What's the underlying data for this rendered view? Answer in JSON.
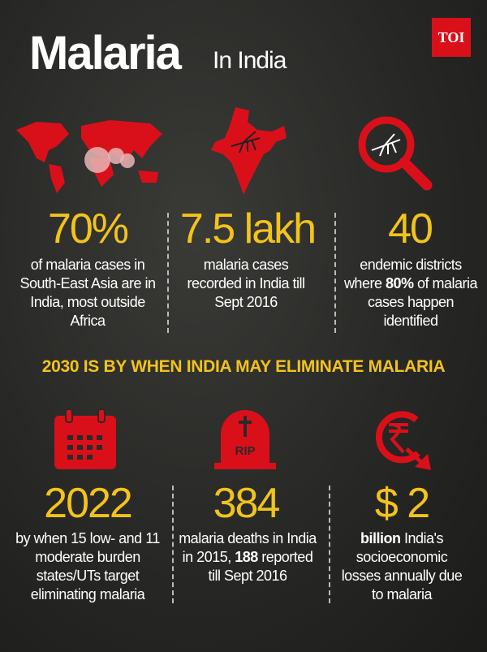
{
  "header": {
    "title": "Malaria",
    "subtitle": "In India",
    "logo": "TOI"
  },
  "stats_top": [
    {
      "value": "70%",
      "parts": [
        "of malaria cases in South-East Asia are in India, most outside Africa"
      ]
    },
    {
      "value": "7.5 lakh",
      "parts": [
        "malaria cases recorded in India till Sept 2016"
      ]
    },
    {
      "value": "40",
      "parts": [
        "endemic districts where ",
        "80%",
        " of malaria cases happen identified"
      ]
    }
  ],
  "banner": "2030 IS BY WHEN INDIA MAY ELIMINATE MALARIA",
  "icon_text": "RIP",
  "stats_bottom": [
    {
      "value": "2022",
      "parts": [
        "by when 15 low- and 11 moderate burden states/UTs target eliminating malaria"
      ]
    },
    {
      "value": "384",
      "parts": [
        "malaria deaths in India in 2015, ",
        "188",
        " reported till Sept 2016"
      ]
    },
    {
      "value": "$ 2",
      "parts": [
        "billion",
        " India's socioeconomic losses annually due to malaria"
      ]
    }
  ]
}
